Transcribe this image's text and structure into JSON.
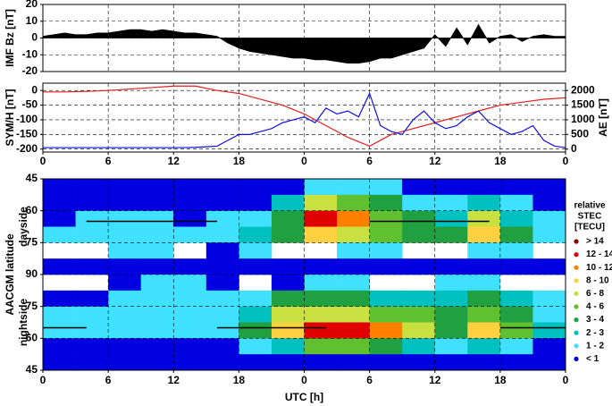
{
  "chart_data": [
    {
      "type": "area",
      "y_label": "IMF Bz [nT]",
      "color": "#000000",
      "x": [
        0,
        1,
        2,
        3,
        4,
        5,
        6,
        7,
        8,
        9,
        10,
        11,
        12,
        13,
        14,
        15,
        16,
        17,
        18,
        19,
        20,
        21,
        22,
        23,
        24,
        25,
        26,
        27,
        28,
        29,
        30,
        31,
        32,
        33,
        34,
        35,
        36,
        37,
        38,
        39,
        40,
        41,
        42,
        43,
        44,
        45,
        46,
        47,
        48
      ],
      "values": [
        1,
        2,
        3,
        2,
        2,
        3,
        3,
        4,
        5,
        5,
        4,
        5,
        4,
        3,
        3,
        2,
        1,
        -3,
        -6,
        -8,
        -9,
        -10,
        -11,
        -12,
        -12,
        -13,
        -13,
        -14,
        -15,
        -15,
        -14,
        -12,
        -12,
        -10,
        -8,
        -6,
        2,
        -5,
        6,
        -4,
        8,
        -3,
        1,
        2,
        -2,
        1,
        2,
        1,
        1
      ],
      "xlim": [
        0,
        48
      ],
      "xticks": [
        0,
        6,
        12,
        18,
        24,
        30,
        36,
        42,
        48
      ],
      "ylim": [
        -20,
        20
      ],
      "yticks": [
        -20,
        -10,
        0,
        10,
        20
      ],
      "grid": true
    },
    {
      "type": "line",
      "series": [
        {
          "name": "SYM/H [nT]",
          "color": "#e02020",
          "x": [
            0,
            2,
            4,
            6,
            8,
            10,
            12,
            14,
            16,
            18,
            20,
            22,
            24,
            26,
            28,
            30,
            32,
            34,
            36,
            38,
            40,
            42,
            44,
            46,
            48
          ],
          "values": [
            -5,
            -5,
            -3,
            0,
            5,
            10,
            15,
            15,
            0,
            -10,
            -30,
            -50,
            -80,
            -120,
            -160,
            -190,
            -150,
            -130,
            -110,
            -90,
            -70,
            -50,
            -40,
            -30,
            -25
          ]
        },
        {
          "name": "AE [nT]",
          "color": "#1010e0",
          "axis": "y2",
          "x": [
            0,
            1,
            2,
            3,
            4,
            5,
            6,
            7,
            8,
            9,
            10,
            11,
            12,
            13,
            14,
            15,
            16,
            17,
            18,
            19,
            20,
            21,
            22,
            23,
            24,
            25,
            26,
            27,
            28,
            29,
            30,
            31,
            32,
            33,
            34,
            35,
            36,
            37,
            38,
            39,
            40,
            41,
            42,
            43,
            44,
            45,
            46,
            47,
            48
          ],
          "values": [
            50,
            50,
            50,
            50,
            50,
            50,
            50,
            50,
            50,
            50,
            50,
            50,
            50,
            50,
            60,
            80,
            100,
            300,
            500,
            500,
            600,
            700,
            900,
            1000,
            1100,
            900,
            1400,
            1200,
            1300,
            1100,
            1900,
            800,
            600,
            500,
            1000,
            1300,
            900,
            700,
            800,
            1100,
            1300,
            900,
            700,
            500,
            600,
            800,
            300,
            100,
            50
          ]
        }
      ],
      "xlim": [
        0,
        48
      ],
      "xticks": [
        0,
        6,
        12,
        18,
        {
          "value": 24,
          "label": "0"
        },
        {
          "value": 30,
          "label": "6"
        },
        {
          "value": 36,
          "label": "12"
        },
        {
          "value": 42,
          "label": "18"
        },
        {
          "value": 48,
          "label": "0"
        }
      ],
      "ylim": [
        -210,
        25
      ],
      "yticks": [
        0,
        -50,
        -100,
        -150,
        -200
      ],
      "y2lim": [
        -100,
        2250
      ],
      "y2ticks": [
        0,
        500,
        1000,
        1500,
        2000
      ],
      "grid": true
    },
    {
      "type": "heatmap",
      "y_label": "AACGM latitude",
      "y_sublabels": [
        "dayside",
        "nightside"
      ],
      "x_label": "UTC [h]",
      "xlim": [
        0,
        48
      ],
      "xticks": [
        0,
        6,
        12,
        18,
        {
          "value": 24,
          "label": "0"
        },
        {
          "value": 30,
          "label": "6"
        },
        {
          "value": 36,
          "label": "12"
        },
        {
          "value": 42,
          "label": "18"
        },
        {
          "value": 48,
          "label": "0"
        }
      ],
      "ylim": [
        45,
        135
      ],
      "yticks": [
        45,
        60,
        75,
        90,
        {
          "value": 105,
          "label": "75"
        },
        {
          "value": 120,
          "label": "60"
        },
        {
          "value": 135,
          "label": "45"
        }
      ],
      "grid": true,
      "x_edges": [
        0,
        3,
        6,
        9,
        12,
        15,
        18,
        21,
        24,
        27,
        30,
        33,
        36,
        39,
        42,
        45,
        48
      ],
      "y_edges": [
        45,
        52.5,
        60,
        67.5,
        75,
        82.5,
        90,
        97.5,
        105,
        112.5,
        120,
        127.5,
        135
      ],
      "values": [
        [
          0.5,
          0.5,
          0.5,
          0.5,
          0.5,
          0.5,
          0.5,
          0.5,
          1.5,
          1.5,
          1,
          0.5,
          0.5,
          0.5,
          0.5,
          0.5
        ],
        [
          0.5,
          0.5,
          0.5,
          0.5,
          0.5,
          0.5,
          0.5,
          2,
          7,
          4,
          3,
          1.5,
          1,
          2,
          1,
          0.5
        ],
        [
          0.5,
          1,
          1,
          1,
          0.5,
          1,
          1.5,
          3,
          12,
          10,
          5,
          3,
          2,
          6,
          2,
          1
        ],
        [
          1,
          1,
          1.5,
          1.5,
          1,
          1.5,
          2,
          3,
          9,
          7,
          4,
          3,
          3,
          9,
          3,
          1.5
        ],
        [
          null,
          null,
          1,
          1,
          null,
          0.5,
          1,
          null,
          null,
          1,
          1,
          null,
          null,
          1.5,
          1,
          null
        ],
        [
          0.5,
          0.5,
          0.5,
          0.5,
          0.5,
          0.5,
          0.5,
          0.5,
          0.5,
          0.5,
          0.5,
          0.5,
          0.5,
          0.5,
          0.5,
          0.5
        ],
        [
          null,
          null,
          0.5,
          1,
          1,
          0.5,
          null,
          0.5,
          1,
          1,
          null,
          null,
          1,
          1,
          null,
          null
        ],
        [
          0.5,
          0.5,
          1,
          1,
          1,
          1,
          1.5,
          3,
          3,
          3,
          2,
          2,
          2,
          3,
          2,
          1
        ],
        [
          1,
          1,
          1,
          1,
          1,
          1.5,
          2,
          6,
          7,
          7,
          5,
          4,
          3,
          5,
          3,
          1.5
        ],
        [
          1.5,
          1,
          1,
          1,
          1,
          1,
          3,
          8,
          12,
          13,
          11,
          6,
          3,
          8,
          4,
          2
        ],
        [
          0.5,
          0.5,
          0.5,
          0.5,
          0.5,
          0.5,
          1,
          2,
          4,
          4,
          3,
          2,
          1,
          2,
          1,
          0.5
        ],
        [
          0.5,
          0.5,
          0.5,
          0.5,
          0.5,
          0.5,
          0.5,
          0.5,
          0.5,
          0.5,
          0.5,
          0.5,
          0.5,
          0.5,
          0.5,
          0.5
        ]
      ],
      "legend_title": [
        "relative",
        "STEC",
        "[TECU]"
      ],
      "legend": [
        {
          "label": "> 14",
          "color": "#8b0000",
          "min": 14
        },
        {
          "label": "12 - 14",
          "color": "#e00000",
          "min": 12
        },
        {
          "label": "10 - 12",
          "color": "#ff8000",
          "min": 10
        },
        {
          "label": "8 - 10",
          "color": "#ffd040",
          "min": 8
        },
        {
          "label": "6 - 8",
          "color": "#c8e040",
          "min": 6
        },
        {
          "label": "4 - 6",
          "color": "#60c030",
          "min": 4
        },
        {
          "label": "3 - 4",
          "color": "#20a040",
          "min": 3
        },
        {
          "label": "2 - 3",
          "color": "#00c0c0",
          "min": 2
        },
        {
          "label": "1 - 2",
          "color": "#40e0ff",
          "min": 1
        },
        {
          "label": "< 1",
          "color": "#0000e0"
        }
      ]
    }
  ]
}
